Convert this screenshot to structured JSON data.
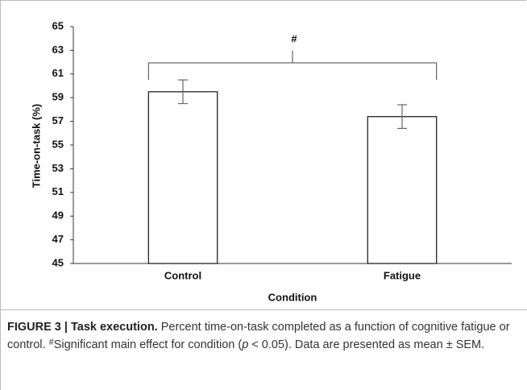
{
  "chart_data": {
    "type": "bar",
    "categories": [
      "Control",
      "Fatigue"
    ],
    "values": [
      59.5,
      57.4
    ],
    "errors": [
      1.0,
      1.0
    ],
    "color": "#ffffff",
    "xlabel": "Condition",
    "ylabel": "Time-on-task (%)",
    "ylim": [
      45,
      65
    ],
    "yticks": [
      45,
      47,
      49,
      51,
      53,
      55,
      57,
      59,
      61,
      63,
      65
    ],
    "annotation": "#",
    "grid": false
  },
  "caption": {
    "label": "FIGURE 3 | Task execution.",
    "parts": [
      " Percent time-on-task completed as a function of cognitive fatigue or control. ",
      "#",
      "Significant main effect for condition (",
      "p",
      " < 0.05). Data are presented as mean ± SEM."
    ]
  }
}
